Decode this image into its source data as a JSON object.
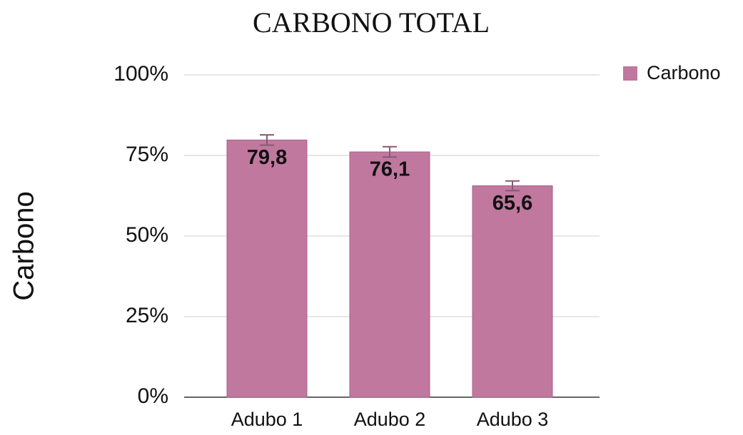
{
  "chart_data": {
    "type": "bar",
    "title": "CARBONO TOTAL",
    "y_label": "Carbono",
    "categories": [
      "Adubo 1",
      "Adubo 2",
      "Adubo 3"
    ],
    "series": [
      {
        "name": "Carbono",
        "color": "#c0789f",
        "values": [
          79.8,
          76.1,
          65.6
        ],
        "value_labels": [
          "79,8",
          "76,1",
          "65,6"
        ],
        "errors": [
          1.6,
          1.6,
          1.5
        ]
      }
    ],
    "ylim": [
      0,
      100
    ],
    "yticks": [
      {
        "value": 0,
        "label": "0%"
      },
      {
        "value": 25,
        "label": "25%"
      },
      {
        "value": 50,
        "label": "50%"
      },
      {
        "value": 75,
        "label": "75%"
      },
      {
        "value": 100,
        "label": "100%"
      }
    ],
    "grid": true,
    "legend": "right"
  }
}
